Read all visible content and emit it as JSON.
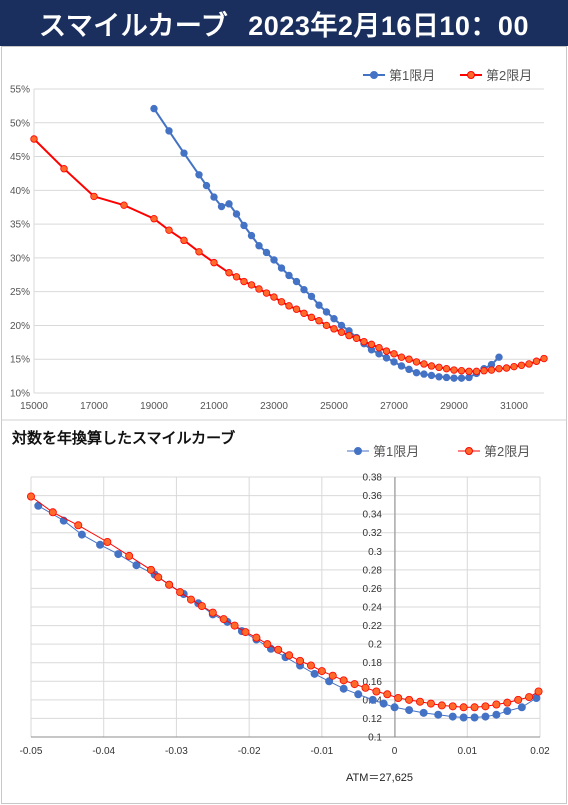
{
  "header": {
    "title_part1": "スマイルカーブ",
    "title_part2": "2023年2月16日10：00"
  },
  "colors": {
    "banner_bg": "#1a2f5e",
    "series1": "#4472c4",
    "series2": "#ff0000",
    "series2_fill": "#ff6a2a"
  },
  "chart_data": [
    {
      "type": "line",
      "title": "",
      "xlabel": "",
      "ylabel": "",
      "xlim": [
        15000,
        32000
      ],
      "ylim": [
        10,
        55
      ],
      "x_ticks": [
        "15000",
        "17000",
        "19000",
        "21000",
        "23000",
        "25000",
        "27000",
        "29000",
        "31000"
      ],
      "y_ticks": [
        "10%",
        "15%",
        "20%",
        "25%",
        "30%",
        "35%",
        "40%",
        "45%",
        "50%",
        "55%"
      ],
      "grid": true,
      "legend_position": "top-right",
      "series": [
        {
          "name": "第1限月",
          "points": [
            [
              19000,
              52.1
            ],
            [
              19500,
              48.8
            ],
            [
              20000,
              45.5
            ],
            [
              20500,
              42.3
            ],
            [
              20750,
              40.7
            ],
            [
              21000,
              39.0
            ],
            [
              21250,
              37.6
            ],
            [
              21500,
              38.0
            ],
            [
              21750,
              36.5
            ],
            [
              22000,
              34.8
            ],
            [
              22250,
              33.3
            ],
            [
              22500,
              31.8
            ],
            [
              22750,
              30.8
            ],
            [
              23000,
              29.7
            ],
            [
              23250,
              28.5
            ],
            [
              23500,
              27.4
            ],
            [
              23750,
              26.5
            ],
            [
              24000,
              25.3
            ],
            [
              24250,
              24.3
            ],
            [
              24500,
              23.0
            ],
            [
              24750,
              22.0
            ],
            [
              25000,
              21.0
            ],
            [
              25250,
              20.0
            ],
            [
              25500,
              19.2
            ],
            [
              25750,
              18.2
            ],
            [
              26000,
              17.3
            ],
            [
              26250,
              16.4
            ],
            [
              26500,
              15.8
            ],
            [
              26750,
              15.2
            ],
            [
              27000,
              14.6
            ],
            [
              27250,
              14.0
            ],
            [
              27500,
              13.5
            ],
            [
              27750,
              13.0
            ],
            [
              28000,
              12.8
            ],
            [
              28250,
              12.6
            ],
            [
              28500,
              12.4
            ],
            [
              28750,
              12.3
            ],
            [
              29000,
              12.2
            ],
            [
              29250,
              12.2
            ],
            [
              29500,
              12.3
            ],
            [
              29750,
              12.9
            ],
            [
              30000,
              13.6
            ],
            [
              30250,
              14.2
            ],
            [
              30500,
              15.3
            ]
          ]
        },
        {
          "name": "第2限月",
          "points": [
            [
              15000,
              47.6
            ],
            [
              16000,
              43.2
            ],
            [
              17000,
              39.1
            ],
            [
              18000,
              37.8
            ],
            [
              19000,
              35.8
            ],
            [
              19500,
              34.1
            ],
            [
              20000,
              32.6
            ],
            [
              20500,
              30.9
            ],
            [
              21000,
              29.3
            ],
            [
              21500,
              27.8
            ],
            [
              21750,
              27.2
            ],
            [
              22000,
              26.5
            ],
            [
              22250,
              26.0
            ],
            [
              22500,
              25.4
            ],
            [
              22750,
              24.8
            ],
            [
              23000,
              24.2
            ],
            [
              23250,
              23.5
            ],
            [
              23500,
              22.9
            ],
            [
              23750,
              22.4
            ],
            [
              24000,
              21.8
            ],
            [
              24250,
              21.2
            ],
            [
              24500,
              20.7
            ],
            [
              24750,
              20.0
            ],
            [
              25000,
              19.5
            ],
            [
              25250,
              19.0
            ],
            [
              25500,
              18.5
            ],
            [
              25750,
              18.1
            ],
            [
              26000,
              17.6
            ],
            [
              26250,
              17.2
            ],
            [
              26500,
              16.7
            ],
            [
              26750,
              16.2
            ],
            [
              27000,
              15.8
            ],
            [
              27250,
              15.3
            ],
            [
              27500,
              15.0
            ],
            [
              27750,
              14.6
            ],
            [
              28000,
              14.3
            ],
            [
              28250,
              14.0
            ],
            [
              28500,
              13.8
            ],
            [
              28750,
              13.6
            ],
            [
              29000,
              13.4
            ],
            [
              29250,
              13.3
            ],
            [
              29500,
              13.2
            ],
            [
              29750,
              13.2
            ],
            [
              30000,
              13.3
            ],
            [
              30250,
              13.4
            ],
            [
              30500,
              13.6
            ],
            [
              30750,
              13.7
            ],
            [
              31000,
              13.9
            ],
            [
              31250,
              14.1
            ],
            [
              31500,
              14.3
            ],
            [
              31750,
              14.7
            ],
            [
              32000,
              15.1
            ]
          ]
        }
      ]
    },
    {
      "type": "line",
      "title": "対数を年換算したスマイルカーブ",
      "xlabel": "",
      "ylabel": "",
      "xlim": [
        -0.05,
        0.02
      ],
      "ylim": [
        0.1,
        0.38
      ],
      "x_ticks": [
        "-0.05",
        "-0.04",
        "-0.03",
        "-0.02",
        "-0.01",
        "0",
        "0.01",
        "0.02"
      ],
      "y_ticks": [
        "0.1",
        "0.12",
        "0.14",
        "0.16",
        "0.18",
        "0.2",
        "0.22",
        "0.24",
        "0.26",
        "0.28",
        "0.3",
        "0.32",
        "0.34",
        "0.36",
        "0.38"
      ],
      "grid": true,
      "legend_position": "top-right",
      "annotation": "ATM＝27,625",
      "series": [
        {
          "name": "第1限月",
          "points": [
            [
              -0.049,
              0.349
            ],
            [
              -0.0455,
              0.333
            ],
            [
              -0.043,
              0.318
            ],
            [
              -0.0405,
              0.307
            ],
            [
              -0.038,
              0.297
            ],
            [
              -0.0355,
              0.285
            ],
            [
              -0.033,
              0.275
            ],
            [
              -0.031,
              0.264
            ],
            [
              -0.029,
              0.254
            ],
            [
              -0.027,
              0.244
            ],
            [
              -0.025,
              0.232
            ],
            [
              -0.023,
              0.224
            ],
            [
              -0.021,
              0.214
            ],
            [
              -0.019,
              0.205
            ],
            [
              -0.017,
              0.195
            ],
            [
              -0.015,
              0.186
            ],
            [
              -0.013,
              0.177
            ],
            [
              -0.011,
              0.168
            ],
            [
              -0.009,
              0.16
            ],
            [
              -0.007,
              0.152
            ],
            [
              -0.005,
              0.146
            ],
            [
              -0.003,
              0.14
            ],
            [
              -0.0015,
              0.136
            ],
            [
              0.0,
              0.132
            ],
            [
              0.002,
              0.129
            ],
            [
              0.004,
              0.126
            ],
            [
              0.006,
              0.124
            ],
            [
              0.008,
              0.122
            ],
            [
              0.0095,
              0.121
            ],
            [
              0.011,
              0.121
            ],
            [
              0.0125,
              0.122
            ],
            [
              0.014,
              0.124
            ],
            [
              0.0155,
              0.128
            ],
            [
              0.0175,
              0.132
            ],
            [
              0.0195,
              0.142
            ]
          ]
        },
        {
          "name": "第2限月",
          "points": [
            [
              -0.05,
              0.359
            ],
            [
              -0.047,
              0.342
            ],
            [
              -0.0435,
              0.328
            ],
            [
              -0.0395,
              0.31
            ],
            [
              -0.0365,
              0.295
            ],
            [
              -0.0335,
              0.28
            ],
            [
              -0.0325,
              0.272
            ],
            [
              -0.031,
              0.264
            ],
            [
              -0.0295,
              0.256
            ],
            [
              -0.028,
              0.248
            ],
            [
              -0.0265,
              0.241
            ],
            [
              -0.025,
              0.234
            ],
            [
              -0.0235,
              0.227
            ],
            [
              -0.022,
              0.22
            ],
            [
              -0.0205,
              0.213
            ],
            [
              -0.019,
              0.207
            ],
            [
              -0.0175,
              0.2
            ],
            [
              -0.016,
              0.194
            ],
            [
              -0.0145,
              0.188
            ],
            [
              -0.013,
              0.182
            ],
            [
              -0.0115,
              0.177
            ],
            [
              -0.01,
              0.171
            ],
            [
              -0.0085,
              0.166
            ],
            [
              -0.007,
              0.161
            ],
            [
              -0.0055,
              0.157
            ],
            [
              -0.004,
              0.153
            ],
            [
              -0.0025,
              0.149
            ],
            [
              -0.001,
              0.146
            ],
            [
              0.0005,
              0.142
            ],
            [
              0.002,
              0.14
            ],
            [
              0.0035,
              0.138
            ],
            [
              0.005,
              0.136
            ],
            [
              0.0065,
              0.134
            ],
            [
              0.008,
              0.133
            ],
            [
              0.0095,
              0.132
            ],
            [
              0.011,
              0.132
            ],
            [
              0.0125,
              0.133
            ],
            [
              0.014,
              0.135
            ],
            [
              0.0155,
              0.137
            ],
            [
              0.017,
              0.14
            ],
            [
              0.0185,
              0.143
            ],
            [
              0.0198,
              0.149
            ]
          ]
        }
      ]
    }
  ]
}
